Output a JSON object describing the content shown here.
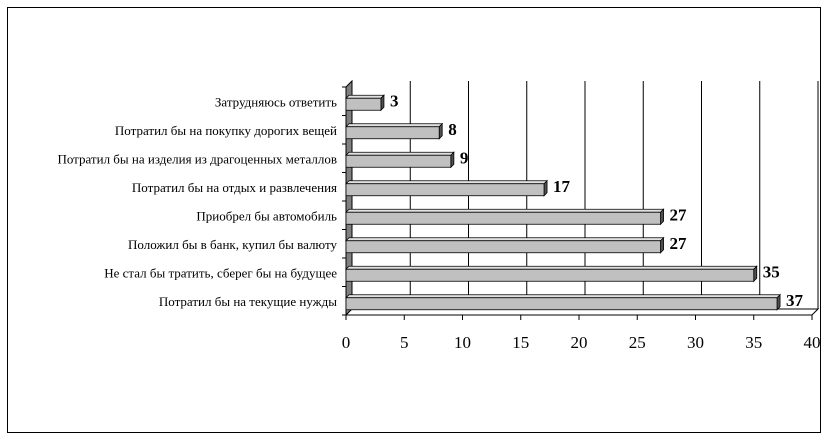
{
  "chart_data": {
    "type": "bar",
    "orientation": "horizontal",
    "categories": [
      "Затрудняюсь ответить",
      "Потратил бы на покупку дорогих вещей",
      "Потратил бы на изделия из драгоценных металлов",
      "Потратил бы на отдых и развлечения",
      "Приобрел бы автомобиль",
      "Положил бы в банк, купил бы валюту",
      "Не стал бы тратить, сберег бы на будущее",
      "Потратил бы на текущие нужды"
    ],
    "values": [
      3,
      8,
      9,
      17,
      27,
      27,
      35,
      37
    ],
    "value_labels": [
      "3",
      "8",
      "9",
      "17",
      "27",
      "27",
      "35",
      "37"
    ],
    "xticks": [
      "0",
      "5",
      "10",
      "15",
      "20",
      "25",
      "30",
      "35",
      "40"
    ],
    "xlim": [
      0,
      40
    ],
    "grid": "vertical",
    "title": "",
    "xlabel": "",
    "ylabel": "",
    "colors": {
      "bar_face": "#c0c0c0",
      "bar_dark": "#505050",
      "wall": "#808080",
      "grid": "#000000"
    }
  }
}
